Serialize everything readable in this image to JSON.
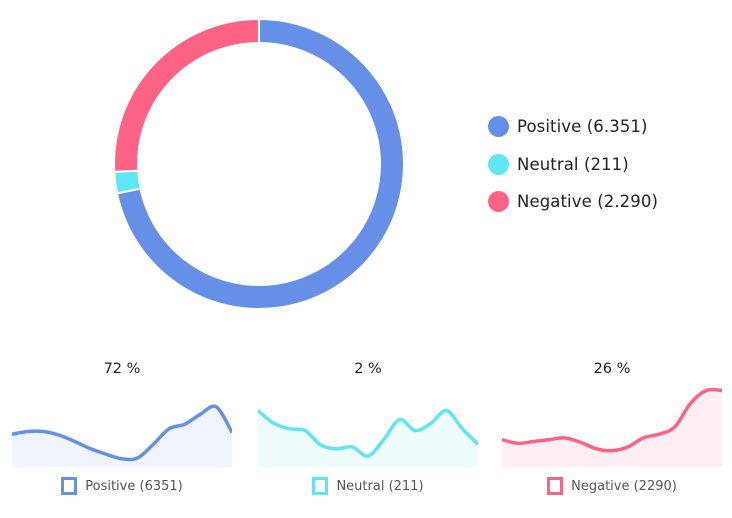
{
  "chart_data": [
    {
      "type": "pie",
      "variant": "doughnut",
      "categories": [
        "Positive",
        "Neutral",
        "Negative"
      ],
      "values": [
        6351,
        211,
        2290
      ],
      "colors": [
        "#6690e8",
        "#5ee6f2",
        "#fe6386"
      ],
      "legend": {
        "placement": "right",
        "labels": [
          "Positive (6.351)",
          "Neutral (211)",
          "Negative (2.290)"
        ]
      }
    },
    {
      "type": "area",
      "annotation": "72 %",
      "legend_label": "Positive (6351)",
      "color": "#6690e8",
      "values": [
        36,
        39,
        39,
        35,
        28,
        20,
        14,
        9,
        10,
        25,
        42,
        47,
        58,
        66,
        38
      ]
    },
    {
      "type": "area",
      "annotation": "2 %",
      "legend_label": "Neutral (211)",
      "color": "#5ee6f2",
      "values": [
        62,
        48,
        42,
        40,
        24,
        20,
        22,
        12,
        30,
        52,
        40,
        48,
        62,
        42,
        25
      ]
    },
    {
      "type": "area",
      "annotation": "26 %",
      "legend_label": "Negative (2290)",
      "color": "#fe6386",
      "values": [
        30,
        26,
        28,
        30,
        32,
        27,
        20,
        18,
        22,
        32,
        36,
        44,
        70,
        84,
        84
      ]
    }
  ]
}
